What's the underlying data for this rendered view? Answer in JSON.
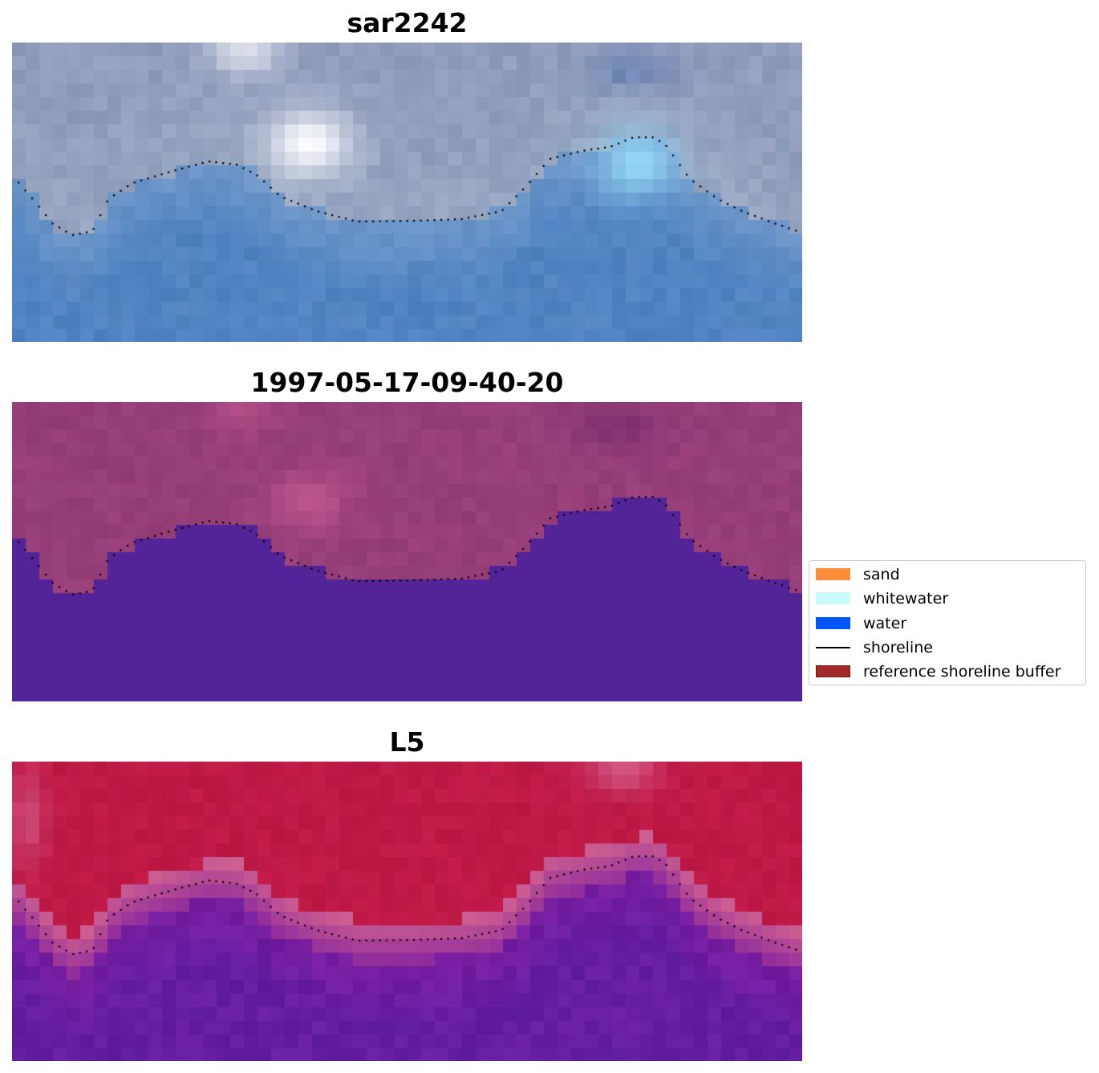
{
  "panels": [
    {
      "title": "sar2242",
      "style": "rgb"
    },
    {
      "title": "1997-05-17-09-40-20",
      "style": "classified"
    },
    {
      "title": "L5",
      "style": "index"
    }
  ],
  "legend": {
    "placement": "center-right",
    "items": [
      {
        "label": "sand",
        "kind": "patch",
        "color": "#ff8c3a"
      },
      {
        "label": "whitewater",
        "kind": "patch",
        "color": "#c8fcfc"
      },
      {
        "label": "water",
        "kind": "patch",
        "color": "#0055ff"
      },
      {
        "label": "shoreline",
        "kind": "line",
        "color": "#000000"
      },
      {
        "label": "reference shoreline buffer",
        "kind": "patch",
        "color": "#a32a2a",
        "edge": "#7a1616"
      }
    ]
  }
}
